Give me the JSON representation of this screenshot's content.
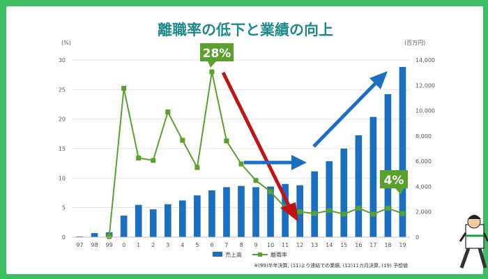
{
  "chart_data": {
    "type": "bar+line",
    "title": "離職率の低下と業績の向上",
    "left_axis_unit": "(%)",
    "right_axis_unit": "(百万円)",
    "categories": [
      "97",
      "98",
      "99",
      "0",
      "1",
      "2",
      "3",
      "4",
      "5",
      "6",
      "7",
      "8",
      "9",
      "10",
      "11",
      "12",
      "13",
      "14",
      "15",
      "16",
      "17",
      "18",
      "19"
    ],
    "left_ticks": [
      "0",
      "5",
      "10",
      "15",
      "20",
      "25",
      "30"
    ],
    "right_ticks": [
      "0",
      "2,000",
      "4,000",
      "6,000",
      "8,000",
      "10,000",
      "12,000",
      "14,000"
    ],
    "ylim_left": [
      0,
      30
    ],
    "ylim_right": [
      0,
      14000
    ],
    "series": [
      {
        "name": "売上高",
        "type": "bar",
        "axis": "right",
        "color": "#1a6fc0",
        "values": [
          60,
          320,
          380,
          1700,
          2550,
          2200,
          2600,
          2900,
          3300,
          3700,
          3950,
          4050,
          3950,
          4000,
          4200,
          4100,
          5200,
          6000,
          7000,
          8050,
          9500,
          11300,
          13450
        ]
      },
      {
        "name": "離職率",
        "type": "line",
        "axis": "left",
        "color": "#5aa02c",
        "values": [
          null,
          null,
          0.1,
          25.2,
          13.4,
          13.0,
          21.2,
          16.4,
          11.8,
          28.0,
          16.3,
          12.4,
          9.6,
          7.7,
          5.0,
          4.3,
          4.0,
          4.5,
          3.9,
          4.9,
          3.9,
          4.9,
          4.0
        ]
      }
    ],
    "legend_position": "bottom",
    "annotations": {
      "peak_label": "28%",
      "end_label": "4%",
      "footnote": "※(99)半年決算, (11)より連結での業績, (12)11カ月決算, (19) 予想値"
    }
  }
}
